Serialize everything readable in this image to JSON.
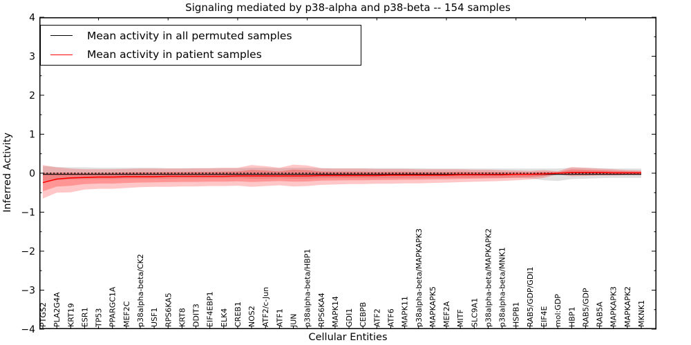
{
  "title": "Signaling mediated by p38-alpha and p38-beta -- 154 samples",
  "axes": {
    "x_label": "Cellular Entities",
    "y_label": "Inferred Activity",
    "y_ticks": [
      4,
      3,
      2,
      1,
      0,
      -1,
      -2,
      -3,
      -4
    ],
    "y_tick_labels": [
      "4",
      "3",
      "2",
      "1",
      "0",
      "−1",
      "−2",
      "−3",
      "−4"
    ],
    "y_range": [
      -4,
      4
    ]
  },
  "legend": {
    "entries": [
      {
        "label": "Mean activity in all permuted samples",
        "color": "#000000"
      },
      {
        "label": "Mean activity in patient samples",
        "color": "#ff0000"
      }
    ]
  },
  "chart_data": {
    "type": "line",
    "title": "Signaling mediated by p38-alpha and p38-beta -- 154 samples",
    "xlabel": "Cellular Entities",
    "ylabel": "Inferred Activity",
    "ylim": [
      -4,
      4
    ],
    "grid": false,
    "legend_position": "upper left",
    "categories": [
      "PTGS2",
      "PLA2G4A",
      "KRT19",
      "ESR1",
      "TP53",
      "PPARGC1A",
      "MEF2C",
      "p38alpha-beta/CK2",
      "USF1",
      "RPS6KA5",
      "KRT8",
      "DDIT3",
      "EIF4EBP1",
      "ELK4",
      "CREB1",
      "NOS2",
      "ATF2/c-Jun",
      "ATF1",
      "JUN",
      "p38alpha-beta/HBP1",
      "RPS6KA4",
      "MAPK14",
      "GDI1",
      "CEBPB",
      "ATF2",
      "ATF6",
      "MAPK11",
      "p38alpha-beta/MAPKAPK3",
      "MAPKAPK5",
      "MEF2A",
      "MITF",
      "SLC9A1",
      "p38alpha-beta/MAPKAPK2",
      "p38alpha-beta/MNK1",
      "HSPB1",
      "RAB5/GDP/GDI1",
      "EIF4E",
      "mol:GDP",
      "HBP1",
      "RAB5/GDP",
      "RAB5A",
      "MAPKAPK3",
      "MAPKAPK2",
      "MKNK1"
    ],
    "series": [
      {
        "name": "Mean activity in all permuted samples",
        "color": "#000000",
        "values": [
          -0.03,
          -0.03,
          -0.03,
          -0.03,
          -0.03,
          -0.03,
          -0.03,
          -0.03,
          -0.03,
          -0.03,
          -0.03,
          -0.03,
          -0.03,
          -0.03,
          -0.03,
          -0.03,
          -0.03,
          -0.03,
          -0.03,
          -0.03,
          -0.03,
          -0.03,
          -0.03,
          -0.03,
          -0.03,
          -0.03,
          -0.03,
          -0.03,
          -0.03,
          -0.03,
          -0.03,
          -0.03,
          -0.03,
          -0.03,
          -0.03,
          -0.03,
          -0.03,
          -0.03,
          -0.03,
          -0.03,
          -0.03,
          -0.03,
          -0.03,
          -0.03
        ]
      },
      {
        "name": "Mean activity in patient samples",
        "color": "#ff0000",
        "values": [
          -0.24,
          -0.15,
          -0.12,
          -0.11,
          -0.1,
          -0.1,
          -0.09,
          -0.09,
          -0.09,
          -0.08,
          -0.08,
          -0.08,
          -0.08,
          -0.08,
          -0.07,
          -0.07,
          -0.07,
          -0.07,
          -0.07,
          -0.07,
          -0.06,
          -0.06,
          -0.06,
          -0.06,
          -0.06,
          -0.05,
          -0.05,
          -0.05,
          -0.05,
          -0.05,
          -0.04,
          -0.04,
          -0.04,
          -0.04,
          -0.03,
          -0.03,
          -0.02,
          0.0,
          0.02,
          0.02,
          0.02,
          0.01,
          0.01,
          0.01
        ]
      }
    ],
    "bands": [
      {
        "name": "patient samples spread",
        "color": "#ff0000",
        "upper": [
          0.21,
          0.15,
          0.12,
          0.1,
          0.1,
          0.1,
          0.11,
          0.12,
          0.12,
          0.12,
          0.12,
          0.13,
          0.13,
          0.14,
          0.14,
          0.21,
          0.18,
          0.14,
          0.22,
          0.2,
          0.13,
          0.12,
          0.12,
          0.12,
          0.11,
          0.11,
          0.11,
          0.1,
          0.1,
          0.1,
          0.1,
          0.09,
          0.09,
          0.08,
          0.07,
          0.06,
          0.08,
          0.05,
          0.16,
          0.14,
          0.12,
          0.1,
          0.08,
          0.07
        ],
        "lower": [
          -0.65,
          -0.5,
          -0.49,
          -0.42,
          -0.4,
          -0.4,
          -0.38,
          -0.36,
          -0.35,
          -0.35,
          -0.34,
          -0.34,
          -0.33,
          -0.33,
          -0.32,
          -0.35,
          -0.33,
          -0.31,
          -0.34,
          -0.33,
          -0.3,
          -0.29,
          -0.28,
          -0.28,
          -0.27,
          -0.27,
          -0.26,
          -0.26,
          -0.25,
          -0.24,
          -0.23,
          -0.22,
          -0.21,
          -0.2,
          -0.18,
          -0.16,
          -0.12,
          -0.03,
          -0.08,
          -0.07,
          -0.06,
          -0.06,
          -0.05,
          -0.05
        ]
      },
      {
        "name": "permuted samples spread",
        "color": "#999999",
        "upper": [
          0.18,
          0.16,
          0.15,
          0.15,
          0.14,
          0.14,
          0.14,
          0.14,
          0.14,
          0.13,
          0.13,
          0.13,
          0.13,
          0.13,
          0.13,
          0.14,
          0.14,
          0.13,
          0.14,
          0.14,
          0.13,
          0.13,
          0.13,
          0.13,
          0.13,
          0.13,
          0.13,
          0.13,
          0.12,
          0.12,
          0.12,
          0.12,
          0.12,
          0.12,
          0.12,
          0.12,
          0.12,
          0.12,
          0.14,
          0.14,
          0.13,
          0.12,
          0.12,
          0.12
        ],
        "lower": [
          -0.2,
          -0.18,
          -0.16,
          -0.15,
          -0.15,
          -0.15,
          -0.14,
          -0.14,
          -0.14,
          -0.14,
          -0.13,
          -0.13,
          -0.13,
          -0.13,
          -0.13,
          -0.14,
          -0.14,
          -0.13,
          -0.14,
          -0.14,
          -0.13,
          -0.13,
          -0.13,
          -0.13,
          -0.13,
          -0.13,
          -0.13,
          -0.13,
          -0.12,
          -0.12,
          -0.12,
          -0.12,
          -0.12,
          -0.12,
          -0.12,
          -0.13,
          -0.18,
          -0.2,
          -0.15,
          -0.14,
          -0.13,
          -0.12,
          -0.12,
          -0.12
        ]
      }
    ],
    "zero_line": {
      "y": 0,
      "style": "dashed",
      "color": "#000000"
    }
  }
}
